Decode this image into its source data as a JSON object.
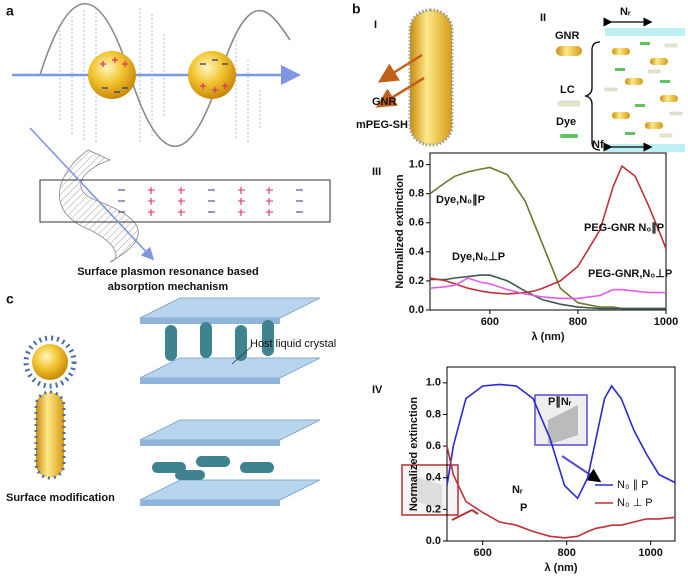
{
  "figure": {
    "panels": [
      "a",
      "b",
      "c"
    ],
    "subpanels": [
      "I",
      "II",
      "III",
      "IV"
    ],
    "panel_a": {
      "caption_lines": [
        "Surface plasmon resonance based",
        "absorption mechanism"
      ]
    },
    "panel_b1": {
      "labels": [
        "GNR",
        "mPEG-SH"
      ]
    },
    "panel_b2": {
      "legend": [
        "GNR",
        "LC",
        "Dye"
      ],
      "director_top": "Nᵣ",
      "director_bottom": "Nf"
    },
    "panel_c": {
      "host_label": "Host liquid crystal",
      "caption": "Surface modification"
    }
  },
  "chart_data": [
    {
      "type": "line",
      "x": [
        464,
        500,
        520,
        550,
        580,
        600,
        640,
        680,
        700,
        720,
        760,
        800,
        850,
        880,
        900,
        930,
        960,
        990,
        1000
      ],
      "series": [
        {
          "name": "Dye,N₀∥P",
          "color": "#6b7a2e",
          "values": [
            0.8,
            0.88,
            0.92,
            0.95,
            0.97,
            0.98,
            0.93,
            0.75,
            0.6,
            0.45,
            0.15,
            0.05,
            0.02,
            0.02,
            0.01,
            0.01,
            0.01,
            0.01,
            0.01
          ]
        },
        {
          "name": "Dye,N₀⊥P",
          "color": "#3e5a50",
          "values": [
            0.21,
            0.21,
            0.22,
            0.23,
            0.24,
            0.24,
            0.2,
            0.13,
            0.1,
            0.07,
            0.04,
            0.02,
            0.01,
            0.01,
            0.01,
            0.01,
            0.01,
            0.01,
            0.01
          ]
        },
        {
          "name": "PEG-GNR N₀∥P",
          "color": "#c0303a",
          "values": [
            0.22,
            0.2,
            0.18,
            0.15,
            0.13,
            0.12,
            0.11,
            0.12,
            0.13,
            0.15,
            0.2,
            0.3,
            0.55,
            0.85,
            0.99,
            0.92,
            0.72,
            0.5,
            0.42
          ]
        },
        {
          "name": "PEG-GNR,N₀⊥P",
          "color": "#e060e0",
          "values": [
            0.15,
            0.16,
            0.17,
            0.22,
            0.19,
            0.18,
            0.14,
            0.11,
            0.1,
            0.09,
            0.08,
            0.08,
            0.1,
            0.14,
            0.14,
            0.13,
            0.12,
            0.12,
            0.12
          ]
        }
      ],
      "x_label": "λ (nm)",
      "y_label": "Normalized extinction",
      "xlim": [
        464,
        1000
      ],
      "xticks": [
        600,
        800,
        1000
      ],
      "ylim": [
        0,
        1.08
      ],
      "yticks": [
        {
          "value": 0,
          "label": "0.0"
        },
        0.2,
        0.4,
        0.6,
        0.8,
        {
          "value": 1,
          "label": "1.0"
        }
      ]
    },
    {
      "type": "line",
      "x": [
        515,
        530,
        560,
        600,
        640,
        680,
        720,
        760,
        795,
        826,
        850,
        870,
        890,
        907,
        930,
        960,
        990,
        1020,
        1058
      ],
      "series": [
        {
          "name": "N₀ ∥ P",
          "color": "#2a2ad0",
          "values": [
            0.35,
            0.6,
            0.9,
            0.98,
            0.99,
            0.98,
            0.9,
            0.65,
            0.35,
            0.27,
            0.4,
            0.65,
            0.9,
            0.98,
            0.9,
            0.7,
            0.55,
            0.42,
            0.37
          ]
        },
        {
          "name": "N₀ ⊥ P",
          "color": "#c0303a",
          "values": [
            0.6,
            0.42,
            0.25,
            0.18,
            0.12,
            0.1,
            0.06,
            0.03,
            0.02,
            0.03,
            0.06,
            0.08,
            0.09,
            0.1,
            0.1,
            0.12,
            0.14,
            0.14,
            0.15
          ]
        }
      ],
      "x_label": "λ (nm)",
      "y_label": "Normalized extinction",
      "xlim": [
        515,
        1058
      ],
      "xticks": [
        600,
        800,
        1000
      ],
      "ylim": [
        0,
        1.1
      ],
      "yticks": [
        {
          "value": 0,
          "label": "0.0"
        },
        0.2,
        0.4,
        0.6,
        0.8,
        {
          "value": 1,
          "label": "1.0"
        }
      ],
      "legend": "lower right",
      "annotations": [
        "P∥Nᵣ",
        "Nᵣ",
        "P"
      ]
    }
  ]
}
